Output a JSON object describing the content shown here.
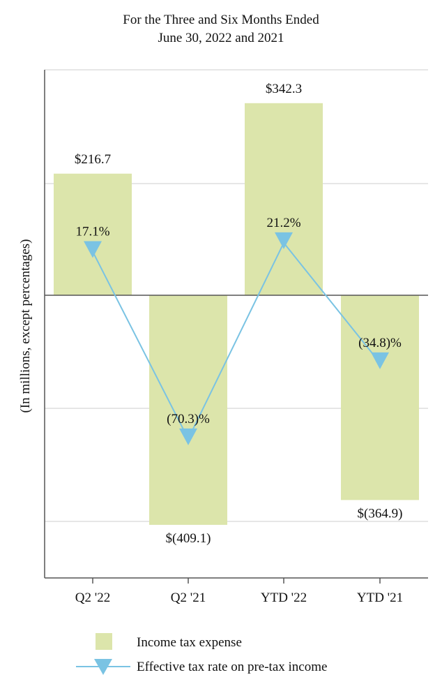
{
  "chart_data": {
    "type": "bar",
    "title": [
      "For the Three and Six Months Ended",
      "June 30, 2022 and 2021"
    ],
    "ylabel": "(In millions, except percentages)",
    "categories": [
      "Q2 '22",
      "Q2 '21",
      "YTD '22",
      "YTD '21"
    ],
    "bar_labels": [
      "$216.7",
      "$(409.1)",
      "$342.3",
      "$(364.9)"
    ],
    "rate_labels": [
      "17.1%",
      "(70.3)%",
      "21.2%",
      "(34.8)%"
    ],
    "series": [
      {
        "name": "Income tax expense",
        "type": "bar",
        "color": "#dce5ab",
        "values": [
          216.7,
          -409.1,
          342.3,
          -364.9
        ]
      },
      {
        "name": "Effective tax rate on pre-tax income",
        "type": "line",
        "color": "#7ac3e3",
        "marker": "triangle-down",
        "values": [
          17.1,
          -70.3,
          21.2,
          -34.8
        ]
      }
    ],
    "grid": true,
    "legend_position": "bottom"
  }
}
